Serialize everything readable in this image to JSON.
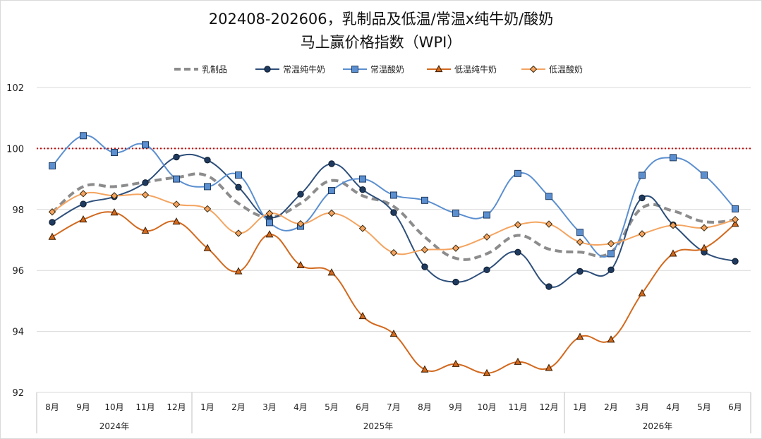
{
  "chart_data": {
    "type": "line",
    "title_line1": "202408-202606，乳制品及低温/常温x纯牛奶/酸奶",
    "title_line2": "马上赢价格指数（WPI）",
    "categories": [
      "8月",
      "9月",
      "10月",
      "11月",
      "12月",
      "1月",
      "2月",
      "3月",
      "4月",
      "5月",
      "6月",
      "7月",
      "8月",
      "9月",
      "10月",
      "11月",
      "12月",
      "1月",
      "2月",
      "3月",
      "4月",
      "5月",
      "6月"
    ],
    "year_groups": [
      {
        "label": "2024年",
        "count": 5
      },
      {
        "label": "2025年",
        "count": 12
      },
      {
        "label": "2026年",
        "count": 6
      }
    ],
    "ylim": [
      92,
      102
    ],
    "yticks": [
      "92",
      "94",
      "96",
      "98",
      "100",
      "102"
    ],
    "reference_line": {
      "value": 100,
      "color": "#c00000",
      "style": "dotted"
    },
    "grid": true,
    "legend_position": "top",
    "series": [
      {
        "name": "乳制品",
        "color": "#8c8c8c",
        "style": "dashed",
        "marker": "none",
        "values": [
          97.9,
          98.75,
          98.75,
          98.9,
          99.05,
          99.1,
          98.2,
          97.75,
          98.2,
          98.95,
          98.45,
          98.1,
          97.1,
          96.4,
          96.55,
          97.15,
          96.7,
          96.6,
          96.6,
          98.05,
          97.95,
          97.6,
          97.65
        ]
      },
      {
        "name": "常温纯牛奶",
        "color": "#2e4f7a",
        "style": "solid",
        "marker": "circle",
        "values": [
          97.58,
          98.18,
          98.42,
          98.88,
          99.72,
          99.62,
          98.73,
          97.73,
          98.5,
          99.5,
          98.65,
          97.9,
          96.12,
          95.62,
          96.02,
          96.6,
          95.47,
          95.97,
          96.02,
          98.38,
          97.5,
          96.6,
          96.3
        ]
      },
      {
        "name": "常温酸奶",
        "color": "#5b8fd0",
        "style": "solid",
        "marker": "square",
        "values": [
          99.43,
          100.42,
          99.87,
          100.12,
          99.0,
          98.75,
          99.13,
          97.57,
          97.45,
          98.62,
          99.0,
          98.47,
          98.3,
          97.88,
          97.82,
          99.18,
          98.43,
          97.25,
          96.55,
          99.12,
          99.7,
          99.13,
          98.02
        ]
      },
      {
        "name": "低温纯牛奶",
        "color": "#d2691e",
        "style": "solid",
        "marker": "triangle",
        "values": [
          97.1,
          97.67,
          97.9,
          97.3,
          97.6,
          96.73,
          95.97,
          97.18,
          96.17,
          95.93,
          94.5,
          93.92,
          92.75,
          92.93,
          92.63,
          93.0,
          92.8,
          93.82,
          93.73,
          95.25,
          96.55,
          96.73,
          97.53
        ]
      },
      {
        "name": "低温酸奶",
        "color": "#f4a460",
        "style": "solid",
        "marker": "diamond",
        "values": [
          97.92,
          98.52,
          98.45,
          98.48,
          98.17,
          98.02,
          97.22,
          97.87,
          97.53,
          97.88,
          97.38,
          96.58,
          96.68,
          96.73,
          97.1,
          97.5,
          97.52,
          96.93,
          96.88,
          97.2,
          97.48,
          97.4,
          97.67
        ]
      }
    ]
  }
}
